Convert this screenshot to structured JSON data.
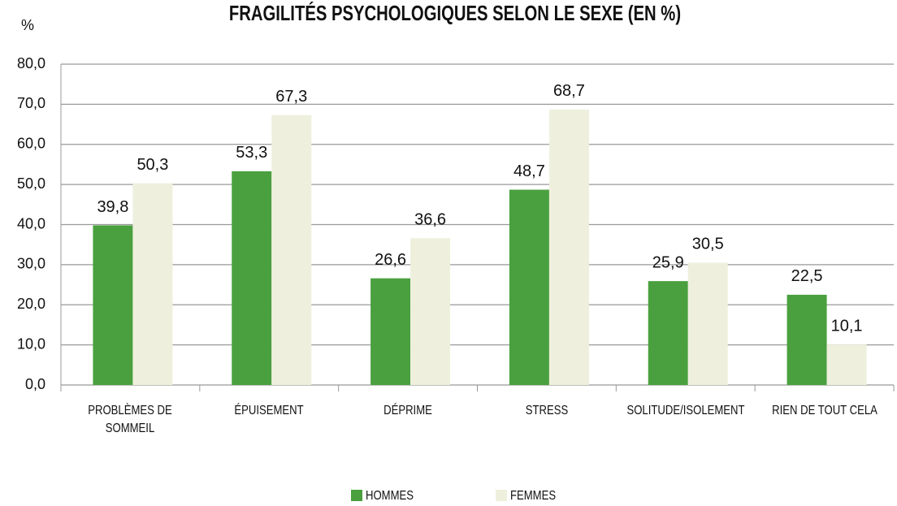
{
  "chart_data": {
    "type": "bar",
    "title": "FRAGILITÉS PSYCHOLOGIQUES SELON LE SEXE (EN %)",
    "y_label": "%",
    "categories": [
      "PROBLÈMES DE SOMMEIL",
      "ÉPUISEMENT",
      "DÉPRIME",
      "STRESS",
      "SOLITUDE/ISOLEMENT",
      "RIEN DE TOUT CELA"
    ],
    "series": [
      {
        "name": "HOMMES",
        "color": "#4aa03f",
        "values": [
          39.8,
          53.3,
          26.6,
          48.7,
          25.9,
          22.5
        ],
        "value_labels": [
          "39,8",
          "53,3",
          "26,6",
          "48,7",
          "25,9",
          "22,5"
        ]
      },
      {
        "name": "FEMMES",
        "color": "#eef0dd",
        "values": [
          50.3,
          67.3,
          36.6,
          68.7,
          30.5,
          10.1
        ],
        "value_labels": [
          "50,3",
          "67,3",
          "36,6",
          "68,7",
          "30,5",
          "10,1"
        ]
      }
    ],
    "ylim": [
      0,
      80
    ],
    "yticks": [
      {
        "value": 0,
        "label": "0,0"
      },
      {
        "value": 10,
        "label": "10,0"
      },
      {
        "value": 20,
        "label": "20,0"
      },
      {
        "value": 30,
        "label": "30,0"
      },
      {
        "value": 40,
        "label": "40,0"
      },
      {
        "value": 50,
        "label": "50,0"
      },
      {
        "value": 60,
        "label": "60,0"
      },
      {
        "value": 70,
        "label": "70,0"
      },
      {
        "value": 80,
        "label": "80,0"
      }
    ],
    "grid": true,
    "legend": "bottom"
  }
}
